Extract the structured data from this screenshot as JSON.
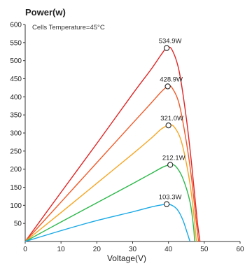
{
  "chart_data": {
    "type": "line",
    "title": "Power(w)",
    "annotation": "Cells Temperature=45°C",
    "xlabel": "Voltage(V)",
    "ylabel": "",
    "xlim": [
      0,
      60
    ],
    "ylim": [
      0,
      600
    ],
    "x_ticks": [
      0,
      10,
      20,
      30,
      40,
      50,
      60
    ],
    "y_ticks": [
      50,
      100,
      150,
      200,
      250,
      300,
      350,
      400,
      450,
      500,
      550,
      600
    ],
    "grid": false,
    "series": [
      {
        "color": "#e02424",
        "label": "534.9W",
        "points": [
          [
            0,
            0
          ],
          [
            10,
            136
          ],
          [
            20,
            271
          ],
          [
            30,
            408
          ],
          [
            35,
            474
          ],
          [
            38,
            517
          ],
          [
            39.5,
            534.9
          ],
          [
            41,
            530
          ],
          [
            43,
            470
          ],
          [
            45,
            340
          ],
          [
            46.5,
            210
          ],
          [
            48,
            60
          ],
          [
            48.8,
            0
          ]
        ]
      },
      {
        "color": "#f05a28",
        "label": "428.9W",
        "points": [
          [
            0,
            0
          ],
          [
            10,
            109
          ],
          [
            20,
            218
          ],
          [
            30,
            327
          ],
          [
            35,
            381
          ],
          [
            38,
            414
          ],
          [
            39.8,
            428.9
          ],
          [
            41,
            425
          ],
          [
            43,
            380
          ],
          [
            45,
            275
          ],
          [
            46.5,
            170
          ],
          [
            47.8,
            50
          ],
          [
            48.4,
            0
          ]
        ]
      },
      {
        "color": "#f5a623",
        "label": "321.0W",
        "points": [
          [
            0,
            0
          ],
          [
            10,
            80
          ],
          [
            20,
            161
          ],
          [
            30,
            242
          ],
          [
            35,
            284
          ],
          [
            38,
            311
          ],
          [
            40,
            321.0
          ],
          [
            41.5,
            318
          ],
          [
            43.5,
            280
          ],
          [
            45.5,
            190
          ],
          [
            46.8,
            100
          ],
          [
            47.8,
            0
          ]
        ]
      },
      {
        "color": "#2db84b",
        "label": "212.1W",
        "points": [
          [
            0,
            0
          ],
          [
            10,
            54
          ],
          [
            20,
            107
          ],
          [
            30,
            160
          ],
          [
            35,
            187
          ],
          [
            38.5,
            206
          ],
          [
            40.5,
            212.1
          ],
          [
            42,
            208
          ],
          [
            44,
            175
          ],
          [
            46,
            110
          ],
          [
            47,
            40
          ],
          [
            47.3,
            0
          ]
        ]
      },
      {
        "color": "#18a9e6",
        "label": "103.3W",
        "points": [
          [
            0,
            0
          ],
          [
            10,
            30
          ],
          [
            20,
            58
          ],
          [
            30,
            82
          ],
          [
            35,
            95
          ],
          [
            38,
            101
          ],
          [
            39.5,
            103.3
          ],
          [
            41,
            100
          ],
          [
            42.5,
            88
          ],
          [
            44,
            60
          ],
          [
            45.2,
            25
          ],
          [
            46,
            0
          ]
        ]
      }
    ]
  }
}
